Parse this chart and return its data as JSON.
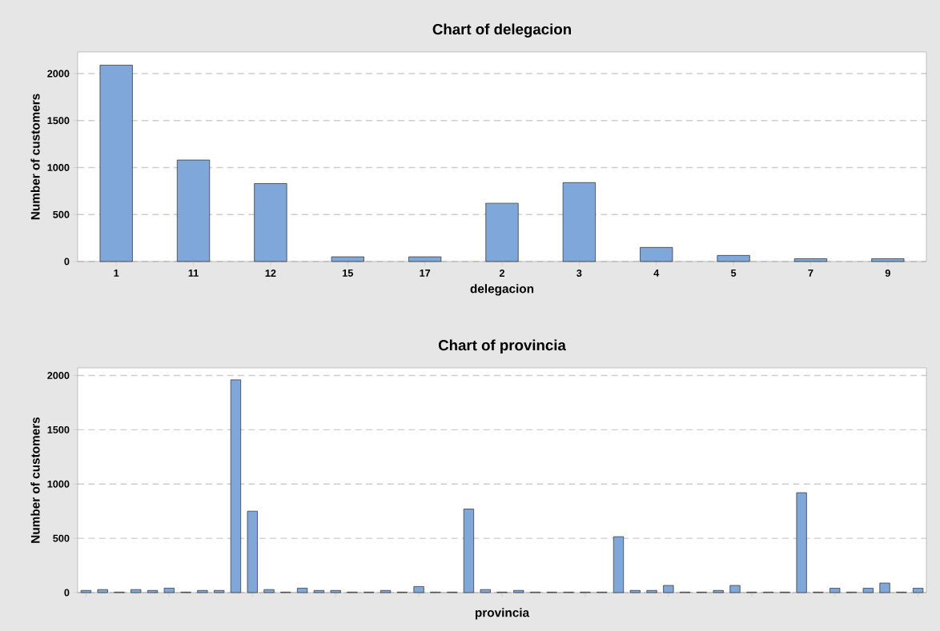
{
  "chart_data": [
    {
      "type": "bar",
      "title": "Chart of delegacion",
      "xlabel": "delegacion",
      "ylabel": "Number of customers",
      "categories": [
        "1",
        "11",
        "12",
        "15",
        "17",
        "2",
        "3",
        "4",
        "5",
        "7",
        "9"
      ],
      "values": [
        2090,
        1080,
        830,
        50,
        50,
        620,
        840,
        150,
        65,
        30,
        30
      ],
      "color": "#7fa7d9",
      "ylim": [
        0,
        2230
      ],
      "yticks": [
        0,
        500,
        1000,
        1500,
        2000
      ],
      "grid": "y"
    },
    {
      "type": "bar",
      "title": "Chart of provincia",
      "xlabel": "provincia",
      "ylabel": "Number of customers",
      "categories": [
        null,
        null,
        null,
        null,
        null,
        null,
        null,
        null,
        null,
        null,
        null,
        null,
        null,
        null,
        null,
        null,
        null,
        null,
        null,
        null,
        null,
        null,
        null,
        null,
        null,
        null,
        null,
        null,
        null,
        null,
        null,
        null,
        null,
        null,
        null,
        null,
        null,
        null,
        null,
        null,
        null,
        null,
        null,
        null,
        null,
        null,
        null,
        null,
        null,
        null,
        null
      ],
      "values": [
        20,
        28,
        5,
        28,
        20,
        41,
        5,
        20,
        20,
        1960,
        750,
        28,
        5,
        41,
        20,
        20,
        5,
        5,
        20,
        5,
        56,
        5,
        5,
        770,
        28,
        5,
        20,
        5,
        5,
        5,
        5,
        5,
        515,
        20,
        20,
        66,
        5,
        5,
        20,
        66,
        5,
        5,
        5,
        920,
        5,
        40,
        5,
        40,
        88,
        5,
        40
      ],
      "color": "#7fa7d9",
      "ylim": [
        0,
        2070
      ],
      "yticks": [
        0,
        500,
        1000,
        1500,
        2000
      ],
      "grid": "y",
      "tick_labels": "y"
    }
  ]
}
